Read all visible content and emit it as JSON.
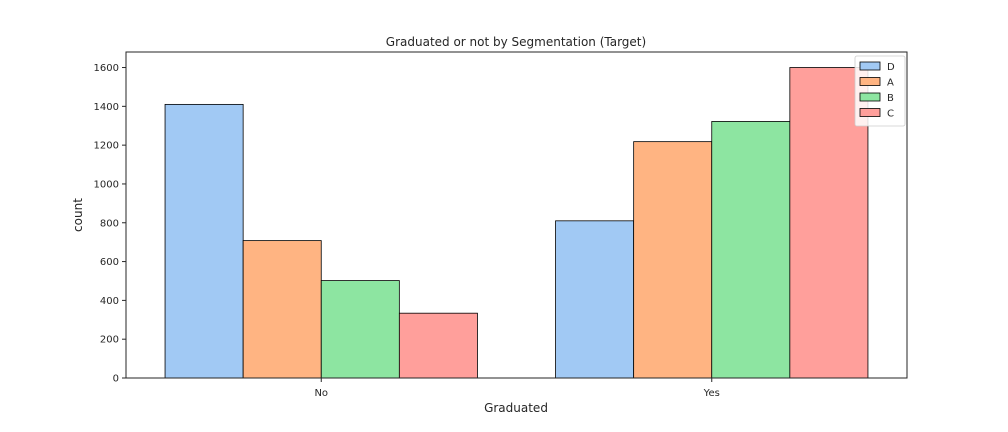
{
  "chart_data": {
    "type": "bar",
    "title": "Graduated or not by Segmentation (Target)",
    "xlabel": "Graduated",
    "ylabel": "count",
    "categories": [
      "No",
      "Yes"
    ],
    "series": [
      {
        "name": "D",
        "values": [
          1410,
          810
        ],
        "color": "#a1c9f4"
      },
      {
        "name": "A",
        "values": [
          708,
          1218
        ],
        "color": "#ffb482"
      },
      {
        "name": "B",
        "values": [
          502,
          1322
        ],
        "color": "#8de5a1"
      },
      {
        "name": "C",
        "values": [
          334,
          1600
        ],
        "color": "#ff9f9b"
      }
    ],
    "ylim": [
      0,
      1680
    ],
    "yticks": [
      0,
      200,
      400,
      600,
      800,
      1000,
      1200,
      1400,
      1600
    ],
    "grid": false,
    "legend_position": "top-right"
  }
}
